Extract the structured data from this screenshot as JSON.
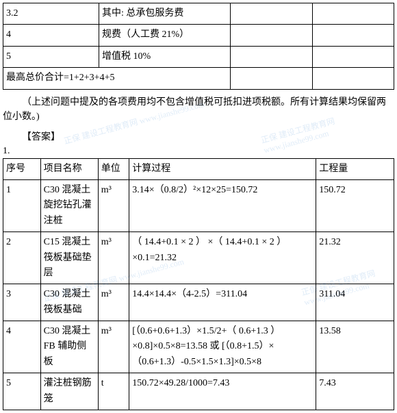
{
  "table1": {
    "rows": [
      {
        "c1": "3.2",
        "c2": "其中: 总承包服务费",
        "c3": "",
        "c4": ""
      },
      {
        "c1": "4",
        "c2": "规费（人工费 21%）",
        "c3": "",
        "c4": ""
      },
      {
        "c1": "5",
        "c2": "增值税 10%",
        "c3": "",
        "c4": ""
      }
    ],
    "total": "最高总价合计=1+2+3+4+5"
  },
  "note": "（上述问题中提及的各项费用均不包含增值税可抵扣进项税额。所有计算结果均保留两位小数。)",
  "answer_label": "【答案】",
  "one": "1.",
  "table2": {
    "headers": {
      "c1": "序号",
      "c2": "项目名称",
      "c3": "单位",
      "c4": "计算过程",
      "c5": "工程量"
    },
    "rows": [
      {
        "c1": "1",
        "c2": "C30 混凝土旋挖钻孔灌注桩",
        "c3": "m³",
        "c4": "3.14×（0.8/2）²×12×25=150.72",
        "c5": "150.72"
      },
      {
        "c1": "2",
        "c2": "C15 混凝土筏板基础垫层",
        "c3": "m³",
        "c4": "（ 14.4+0.1 × 2 ） ×（ 14.4+0.1 × 2 ） ×0.1=21.32",
        "c5": "21.32"
      },
      {
        "c1": "3",
        "c2": "C30 混凝土筏板基础",
        "c3": "m³",
        "c4": "14.4×14.4×（4-2.5）=311.04",
        "c5": "311.04"
      },
      {
        "c1": "4",
        "c2": "C30 混凝土 FB 辅助侧板",
        "c3": "m³",
        "c4": "[（0.6+0.6+1.3）×1.5/2+（ 0.6+1.3 ） ×0.8]×0.5×8=13.58 或 [（0.8+1.5）×（0.6+1.3）-0.5×1.5×1.3]×0.5×8",
        "c5": "13.58"
      },
      {
        "c1": "5",
        "c2": "灌注桩钢筋笼",
        "c3": "t",
        "c4": "150.72×49.28/1000=7.43",
        "c5": "7.43"
      }
    ]
  },
  "watermark_text": "正保 建设工程教育网 www.jianshe99.com"
}
